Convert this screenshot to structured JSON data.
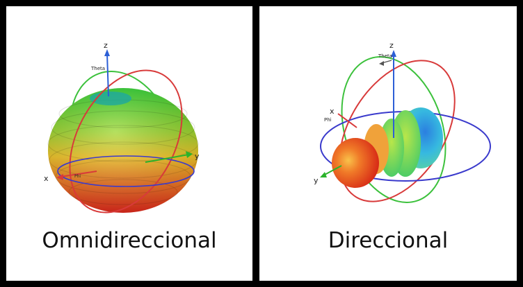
{
  "panels": [
    {
      "caption": "Omnidireccional",
      "axes": {
        "z": "z",
        "x": "x",
        "y": "y",
        "theta": "Theta",
        "phi": "Phi"
      },
      "colors": {
        "pattern_hot": "#e8331f",
        "pattern_mid": "#f0d020",
        "pattern_cool": "#2bd12b",
        "ring_red": "#d83a3a",
        "ring_green": "#3cc13c",
        "ring_blue": "#3a3acc"
      }
    },
    {
      "caption": "Direccional",
      "axes": {
        "z": "z",
        "x": "x",
        "y": "y",
        "theta": "Theta",
        "phi": "Phi"
      },
      "colors": {
        "lobe_hot": "#e53a1c",
        "lobe_cool": "#3aa7e8",
        "ring_red": "#d83a3a",
        "ring_green": "#3cc13c",
        "ring_blue": "#3a3acc"
      }
    }
  ]
}
